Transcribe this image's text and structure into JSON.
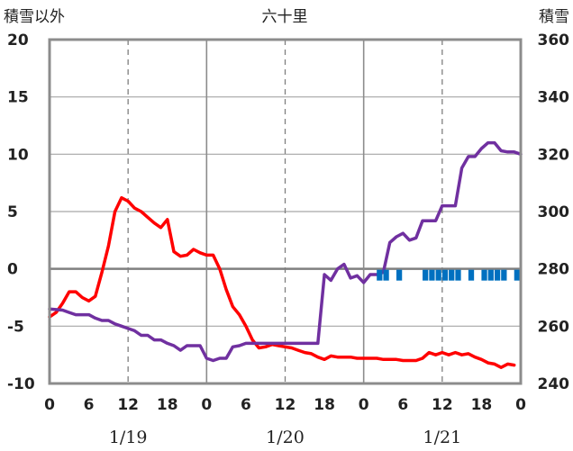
{
  "chart_data": {
    "type": "line",
    "title": "六十里",
    "left_axis_label": "積雪以外",
    "right_axis_label": "積雪",
    "left_ylim": [
      -10,
      20
    ],
    "left_ticks": [
      "20",
      "15",
      "10",
      "5",
      "0",
      "-5",
      "-10"
    ],
    "right_ylim": [
      240,
      360
    ],
    "right_ticks": [
      "360",
      "340",
      "320",
      "300",
      "280",
      "260",
      "240"
    ],
    "x_hours": [
      0,
      72
    ],
    "x_tick_labels": [
      "0",
      "6",
      "12",
      "18",
      "0",
      "6",
      "12",
      "18",
      "0",
      "6",
      "12",
      "18",
      "0"
    ],
    "date_labels": [
      "1/19",
      "1/20",
      "1/21"
    ],
    "grid": "vertical dashed at 12h, solid at day boundaries, horizontal at 5-unit steps",
    "series": [
      {
        "color": "#ff0000",
        "axis": "left",
        "points": [
          [
            0,
            -4.2
          ],
          [
            1,
            -3.8
          ],
          [
            2,
            -3
          ],
          [
            3,
            -2
          ],
          [
            4,
            -2
          ],
          [
            5,
            -2.5
          ],
          [
            6,
            -2.8
          ],
          [
            7,
            -2.4
          ],
          [
            8,
            -0.3
          ],
          [
            9,
            2
          ],
          [
            10,
            5
          ],
          [
            11,
            6.2
          ],
          [
            12,
            5.9
          ],
          [
            13,
            5.3
          ],
          [
            14,
            5
          ],
          [
            15,
            4.5
          ],
          [
            16,
            4
          ],
          [
            17,
            3.6
          ],
          [
            18,
            4.3
          ],
          [
            19,
            1.5
          ],
          [
            20,
            1.1
          ],
          [
            21,
            1.2
          ],
          [
            22,
            1.7
          ],
          [
            23,
            1.4
          ],
          [
            24,
            1.2
          ],
          [
            25,
            1.2
          ],
          [
            26,
            0
          ],
          [
            27,
            -1.8
          ],
          [
            28,
            -3.3
          ],
          [
            29,
            -4
          ],
          [
            30,
            -5
          ],
          [
            31,
            -6.2
          ],
          [
            32,
            -6.9
          ],
          [
            33,
            -6.8
          ],
          [
            34,
            -6.6
          ],
          [
            35,
            -6.7
          ],
          [
            36,
            -6.8
          ],
          [
            37,
            -6.9
          ],
          [
            38,
            -7.1
          ],
          [
            39,
            -7.3
          ],
          [
            40,
            -7.4
          ],
          [
            41,
            -7.7
          ],
          [
            42,
            -7.9
          ],
          [
            43,
            -7.6
          ],
          [
            44,
            -7.7
          ],
          [
            45,
            -7.7
          ],
          [
            46,
            -7.7
          ],
          [
            47,
            -7.8
          ],
          [
            48,
            -7.8
          ],
          [
            49,
            -7.8
          ],
          [
            50,
            -7.8
          ],
          [
            51,
            -7.9
          ],
          [
            52,
            -7.9
          ],
          [
            53,
            -7.9
          ],
          [
            54,
            -8
          ],
          [
            55,
            -8
          ],
          [
            56,
            -8
          ],
          [
            57,
            -7.8
          ],
          [
            58,
            -7.3
          ],
          [
            59,
            -7.5
          ],
          [
            60,
            -7.3
          ],
          [
            61,
            -7.5
          ],
          [
            62,
            -7.3
          ],
          [
            63,
            -7.5
          ],
          [
            64,
            -7.4
          ],
          [
            65,
            -7.7
          ],
          [
            66,
            -7.9
          ],
          [
            67,
            -8.2
          ],
          [
            68,
            -8.3
          ],
          [
            69,
            -8.6
          ],
          [
            70,
            -8.3
          ],
          [
            71,
            -8.4
          ]
        ]
      },
      {
        "color": "#7030a0",
        "axis": "left",
        "points": [
          [
            0,
            -3.5
          ],
          [
            2,
            -3.6
          ],
          [
            3,
            -3.8
          ],
          [
            4,
            -4
          ],
          [
            6,
            -4
          ],
          [
            7,
            -4.3
          ],
          [
            8,
            -4.5
          ],
          [
            9,
            -4.5
          ],
          [
            10,
            -4.8
          ],
          [
            11,
            -5
          ],
          [
            12,
            -5.2
          ],
          [
            13,
            -5.4
          ],
          [
            14,
            -5.8
          ],
          [
            15,
            -5.8
          ],
          [
            16,
            -6.2
          ],
          [
            17,
            -6.2
          ],
          [
            18,
            -6.5
          ],
          [
            19,
            -6.7
          ],
          [
            20,
            -7.1
          ],
          [
            21,
            -6.7
          ],
          [
            23,
            -6.7
          ],
          [
            24,
            -7.8
          ],
          [
            25,
            -8
          ],
          [
            26,
            -7.8
          ],
          [
            27,
            -7.8
          ],
          [
            28,
            -6.8
          ],
          [
            29,
            -6.7
          ],
          [
            30,
            -6.5
          ],
          [
            35,
            -6.5
          ],
          [
            36,
            -6.5
          ],
          [
            38,
            -6.5
          ],
          [
            39,
            -6.5
          ],
          [
            40,
            -6.5
          ],
          [
            41,
            -6.5
          ],
          [
            42,
            -0.5
          ],
          [
            43,
            -1
          ],
          [
            44,
            0
          ],
          [
            45,
            0.4
          ],
          [
            46,
            -0.8
          ],
          [
            47,
            -0.6
          ],
          [
            48,
            -1.2
          ],
          [
            49,
            -0.5
          ],
          [
            50,
            -0.5
          ],
          [
            51,
            -0.3
          ],
          [
            52,
            2.3
          ],
          [
            53,
            2.8
          ],
          [
            54,
            3.1
          ],
          [
            55,
            2.5
          ],
          [
            56,
            2.7
          ],
          [
            57,
            4.2
          ],
          [
            59,
            4.2
          ],
          [
            60,
            5.5
          ],
          [
            61,
            5.5
          ],
          [
            62,
            5.5
          ],
          [
            63,
            8.8
          ],
          [
            64,
            9.8
          ],
          [
            65,
            9.8
          ],
          [
            66,
            10.5
          ],
          [
            67,
            11
          ],
          [
            68,
            11
          ],
          [
            69,
            10.3
          ],
          [
            70,
            10.2
          ],
          [
            71,
            10.2
          ],
          [
            72,
            10
          ]
        ]
      },
      {
        "color": "#0070c0",
        "axis": "left",
        "style": "bars-at-zero",
        "hours": [
          50,
          51,
          53,
          57,
          58,
          59,
          60,
          61,
          62,
          64,
          66,
          67,
          68,
          69,
          71
        ]
      }
    ]
  }
}
